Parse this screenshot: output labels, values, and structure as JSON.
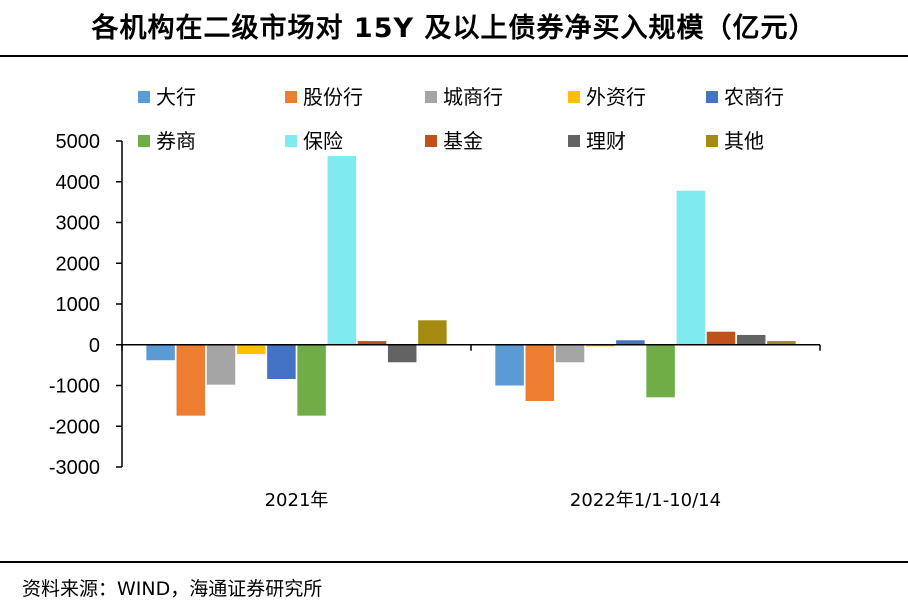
{
  "title": "各机构在二级市场对 15Y 及以上债券净买入规模（亿元）",
  "source": "资料来源：WIND，海通证券研究所",
  "chart_data": {
    "type": "bar",
    "title": "各机构在二级市场对 15Y 及以上债券净买入规模（亿元）",
    "xlabel": "",
    "ylabel": "",
    "ylim": [
      -3000,
      5000
    ],
    "yticks": [
      5000,
      4000,
      3000,
      2000,
      1000,
      0,
      -1000,
      -2000,
      -3000
    ],
    "categories": [
      "2021年",
      "2022年1/1-10/14"
    ],
    "legend_position": "top",
    "series": [
      {
        "name": "大行",
        "color": "#5B9BD5",
        "values": [
          -380,
          -1000
        ]
      },
      {
        "name": "股份行",
        "color": "#ED7D31",
        "values": [
          -1740,
          -1380
        ]
      },
      {
        "name": "城商行",
        "color": "#A5A5A5",
        "values": [
          -980,
          -430
        ]
      },
      {
        "name": "外资行",
        "color": "#FFC000",
        "values": [
          -230,
          -40
        ]
      },
      {
        "name": "农商行",
        "color": "#4472C4",
        "values": [
          -840,
          110
        ]
      },
      {
        "name": "券商",
        "color": "#70AD47",
        "values": [
          -1740,
          -1290
        ]
      },
      {
        "name": "保险",
        "color": "#7FEAF0",
        "values": [
          4630,
          3780
        ]
      },
      {
        "name": "基金",
        "color": "#C0501C",
        "values": [
          90,
          320
        ]
      },
      {
        "name": "理财",
        "color": "#636363",
        "values": [
          -430,
          240
        ]
      },
      {
        "name": "其他",
        "color": "#A38A10",
        "values": [
          600,
          90
        ]
      }
    ]
  }
}
